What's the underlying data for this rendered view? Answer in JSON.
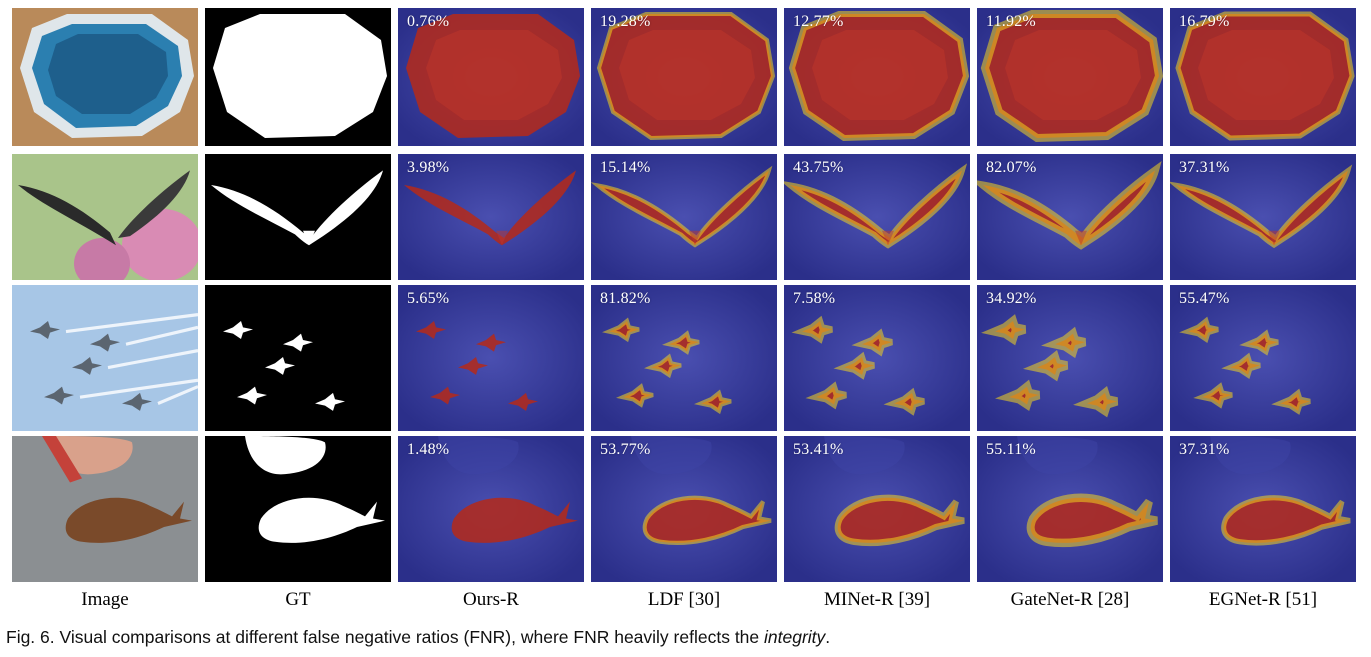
{
  "columns": [
    "Image",
    "GT",
    "Ours-R",
    "LDF [30]",
    "MINet-R [39]",
    "GateNet-R [28]",
    "EGNet-R [51]"
  ],
  "rows": [
    {
      "scene": "hot-tub",
      "fnr": [
        "0.76%",
        "19.28%",
        "12.77%",
        "11.92%",
        "16.79%"
      ]
    },
    {
      "scene": "butterfly",
      "fnr": [
        "3.98%",
        "15.14%",
        "43.75%",
        "82.07%",
        "37.31%"
      ]
    },
    {
      "scene": "jets",
      "fnr": [
        "5.65%",
        "81.82%",
        "7.58%",
        "34.92%",
        "55.47%"
      ]
    },
    {
      "scene": "snail",
      "fnr": [
        "1.48%",
        "53.77%",
        "53.41%",
        "55.11%",
        "37.31%"
      ]
    }
  ],
  "caption": {
    "prefix": "Fig. 6. Visual comparisons at different false negative ratios (FNR), where FNR heavily reflects the ",
    "emph": "integrity",
    "suffix": "."
  },
  "colors": {
    "heat_bg": "#3a3f9e",
    "heat_fg": "#b22a1d",
    "edge": "#f2d31f"
  }
}
